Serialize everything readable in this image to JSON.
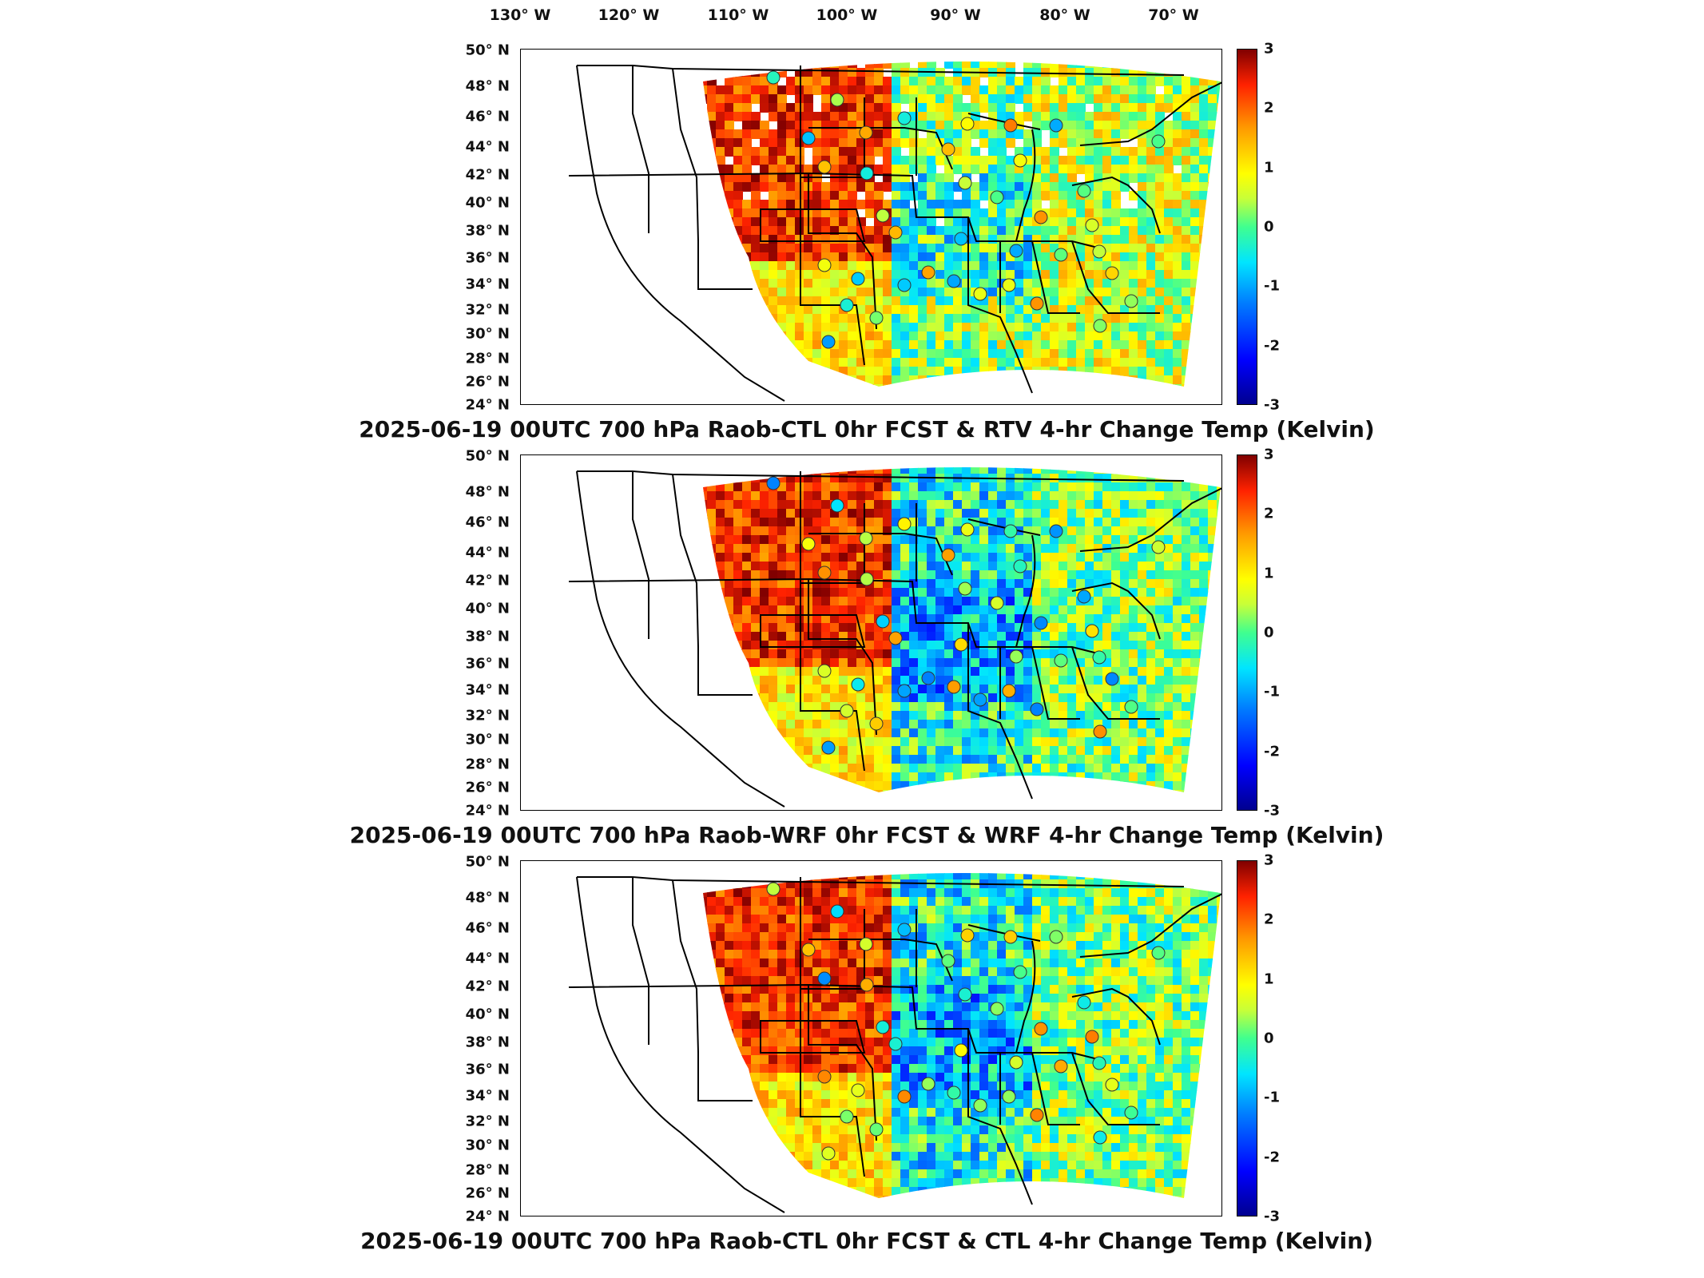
{
  "lon_labels": [
    "130° W",
    "120° W",
    "110° W",
    "100° W",
    "90° W",
    "80° W",
    "70° W"
  ],
  "lat_labels": [
    "50° N",
    "48° N",
    "46° N",
    "44° N",
    "42° N",
    "40° N",
    "38° N",
    "36° N",
    "34° N",
    "32° N",
    "30° N",
    "28° N",
    "26° N",
    "24° N"
  ],
  "colorbar": {
    "ticks": [
      "3",
      "2",
      "1",
      "0",
      "-1",
      "-2",
      "-3"
    ],
    "range": [
      -3,
      3
    ],
    "units": "Kelvin"
  },
  "panels": [
    {
      "title": "2025-06-19 00UTC 700 hPa Raob-CTL 0hr FCST & RTV 4-hr Change Temp (Kelvin)",
      "variant": "rtv"
    },
    {
      "title": "2025-06-19 00UTC 700 hPa Raob-WRF 0hr FCST & WRF 4-hr Change Temp (Kelvin)",
      "variant": "wrf"
    },
    {
      "title": "2025-06-19 00UTC 700 hPa Raob-CTL 0hr FCST & CTL 4-hr Change Temp (Kelvin)",
      "variant": "ctl"
    }
  ]
}
